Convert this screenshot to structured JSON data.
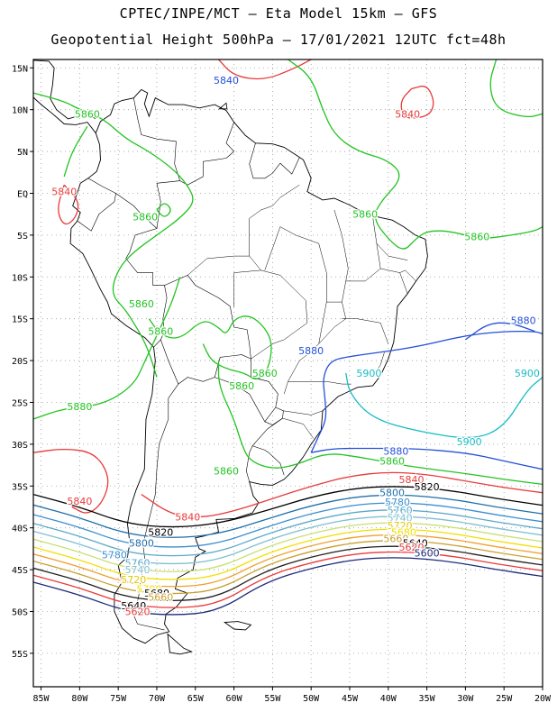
{
  "header": {
    "title_line1": "CPTEC/INPE/MCT –  Eta Model 15km – GFS",
    "title_line2": "Geopotential Height 500hPa – 17/01/2021 12UTC fct=48h"
  },
  "axes": {
    "lat_labels": [
      "15N",
      "10N",
      "5N",
      "EQ",
      "5S",
      "10S",
      "15S",
      "20S",
      "25S",
      "30S",
      "35S",
      "40S",
      "45S",
      "50S",
      "55S"
    ],
    "lat_values": [
      15,
      10,
      5,
      0,
      -5,
      -10,
      -15,
      -20,
      -25,
      -30,
      -35,
      -40,
      -45,
      -50,
      -55
    ],
    "lon_labels": [
      "85W",
      "80W",
      "75W",
      "70W",
      "65W",
      "60W",
      "55W",
      "50W",
      "45W",
      "40W",
      "35W",
      "30W",
      "25W",
      "20W"
    ],
    "lon_values": [
      -85,
      -80,
      -75,
      -70,
      -65,
      -60,
      -55,
      -50,
      -45,
      -40,
      -35,
      -30,
      -25,
      -20
    ],
    "lon_range": [
      -86,
      -20
    ],
    "lat_range": [
      -59,
      16
    ],
    "grid": "dotted"
  },
  "contour_labels": [
    {
      "text": "5840",
      "lon": -61,
      "lat": 13.5,
      "color": "#2450d8"
    },
    {
      "text": "5840",
      "lon": -37.5,
      "lat": 9.5,
      "color": "#e83a3a"
    },
    {
      "text": "5860",
      "lon": -79,
      "lat": 9.5,
      "color": "#22c422"
    },
    {
      "text": "5840",
      "lon": -82,
      "lat": 0.2,
      "color": "#e83a3a"
    },
    {
      "text": "5860",
      "lon": -71.5,
      "lat": -2.8,
      "color": "#22c422"
    },
    {
      "text": "5860",
      "lon": -43,
      "lat": -2.5,
      "color": "#22c422"
    },
    {
      "text": "5860",
      "lon": -28.5,
      "lat": -5.2,
      "color": "#22c422"
    },
    {
      "text": "5860",
      "lon": -72,
      "lat": -13.2,
      "color": "#22c422"
    },
    {
      "text": "5860",
      "lon": -69.5,
      "lat": -16.5,
      "color": "#22c422"
    },
    {
      "text": "5880",
      "lon": -50,
      "lat": -18.8,
      "color": "#2450d8"
    },
    {
      "text": "5880",
      "lon": -22.5,
      "lat": -15.2,
      "color": "#2450d8"
    },
    {
      "text": "5860",
      "lon": -56,
      "lat": -21.5,
      "color": "#22c422"
    },
    {
      "text": "5860",
      "lon": -59,
      "lat": -23,
      "color": "#22c422"
    },
    {
      "text": "5900",
      "lon": -42.5,
      "lat": -21.5,
      "color": "#17bcc4"
    },
    {
      "text": "5900",
      "lon": -22,
      "lat": -21.5,
      "color": "#17bcc4"
    },
    {
      "text": "5880",
      "lon": -80,
      "lat": -25.5,
      "color": "#22c422"
    },
    {
      "text": "5900",
      "lon": -29.5,
      "lat": -29.7,
      "color": "#17bcc4"
    },
    {
      "text": "5880",
      "lon": -39,
      "lat": -30.8,
      "color": "#2450d8"
    },
    {
      "text": "5860",
      "lon": -39.5,
      "lat": -32,
      "color": "#22c422"
    },
    {
      "text": "5860",
      "lon": -61,
      "lat": -33.2,
      "color": "#22c422"
    },
    {
      "text": "5840",
      "lon": -37,
      "lat": -34.2,
      "color": "#e83a3a"
    },
    {
      "text": "5820",
      "lon": -35,
      "lat": -35.1,
      "color": "#000000"
    },
    {
      "text": "5800",
      "lon": -39.5,
      "lat": -35.8,
      "color": "#1f6fa8"
    },
    {
      "text": "5780",
      "lon": -38.8,
      "lat": -36.9,
      "color": "#3a8fd0"
    },
    {
      "text": "5760",
      "lon": -38.5,
      "lat": -37.9,
      "color": "#5aa9c8"
    },
    {
      "text": "5740",
      "lon": -38.5,
      "lat": -38.8,
      "color": "#7fbfd0"
    },
    {
      "text": "5720",
      "lon": -38.5,
      "lat": -39.7,
      "color": "#e0c800"
    },
    {
      "text": "5840",
      "lon": -80,
      "lat": -36.8,
      "color": "#e83a3a"
    },
    {
      "text": "5840",
      "lon": -66,
      "lat": -38.7,
      "color": "#e83a3a"
    },
    {
      "text": "5820",
      "lon": -69.5,
      "lat": -40.5,
      "color": "#000000"
    },
    {
      "text": "5800",
      "lon": -72,
      "lat": -41.8,
      "color": "#1f6fa8"
    },
    {
      "text": "5780",
      "lon": -75.5,
      "lat": -43.2,
      "color": "#3a8fd0"
    },
    {
      "text": "5760",
      "lon": -72.5,
      "lat": -44.2,
      "color": "#5aa9c8"
    },
    {
      "text": "5740",
      "lon": -72.5,
      "lat": -45,
      "color": "#7fbfd0"
    },
    {
      "text": "5720",
      "lon": -73,
      "lat": -46.2,
      "color": "#e0c800"
    },
    {
      "text": "5700",
      "lon": -71,
      "lat": -47.3,
      "color": "#f0e000"
    },
    {
      "text": "5680",
      "lon": -70,
      "lat": -47.8,
      "color": "#000000"
    },
    {
      "text": "5660",
      "lon": -69.5,
      "lat": -48.3,
      "color": "#c8a030"
    },
    {
      "text": "5640",
      "lon": -73,
      "lat": -49.3,
      "color": "#000000"
    },
    {
      "text": "5620",
      "lon": -72.5,
      "lat": -50,
      "color": "#e83a3a"
    },
    {
      "text": "5680",
      "lon": -38,
      "lat": -40.5,
      "color": "#f0e000"
    },
    {
      "text": "5660",
      "lon": -39,
      "lat": -41.3,
      "color": "#c8a030"
    },
    {
      "text": "5640",
      "lon": -36.5,
      "lat": -41.8,
      "color": "#000000"
    },
    {
      "text": "5620",
      "lon": -37,
      "lat": -42.3,
      "color": "#e83a3a"
    },
    {
      "text": "5600",
      "lon": -35,
      "lat": -43,
      "color": "#1a2a7a"
    }
  ],
  "colors": {
    "c5600": "#1a2a7a",
    "c5620": "#e83a3a",
    "c5640": "#202020",
    "c5660": "#c8a030",
    "c5680": "#f0a030",
    "c5700": "#f0e000",
    "c5720": "#c8e070",
    "c5740": "#7fbfd0",
    "c5760": "#5aa9c8",
    "c5780": "#3a8fd0",
    "c5800": "#1f6fa8",
    "c5820": "#000000",
    "c5840": "#e83a3a",
    "c5860": "#22c422",
    "c5880": "#2450d8",
    "c5900": "#17bcc4",
    "coast": "#000000"
  }
}
